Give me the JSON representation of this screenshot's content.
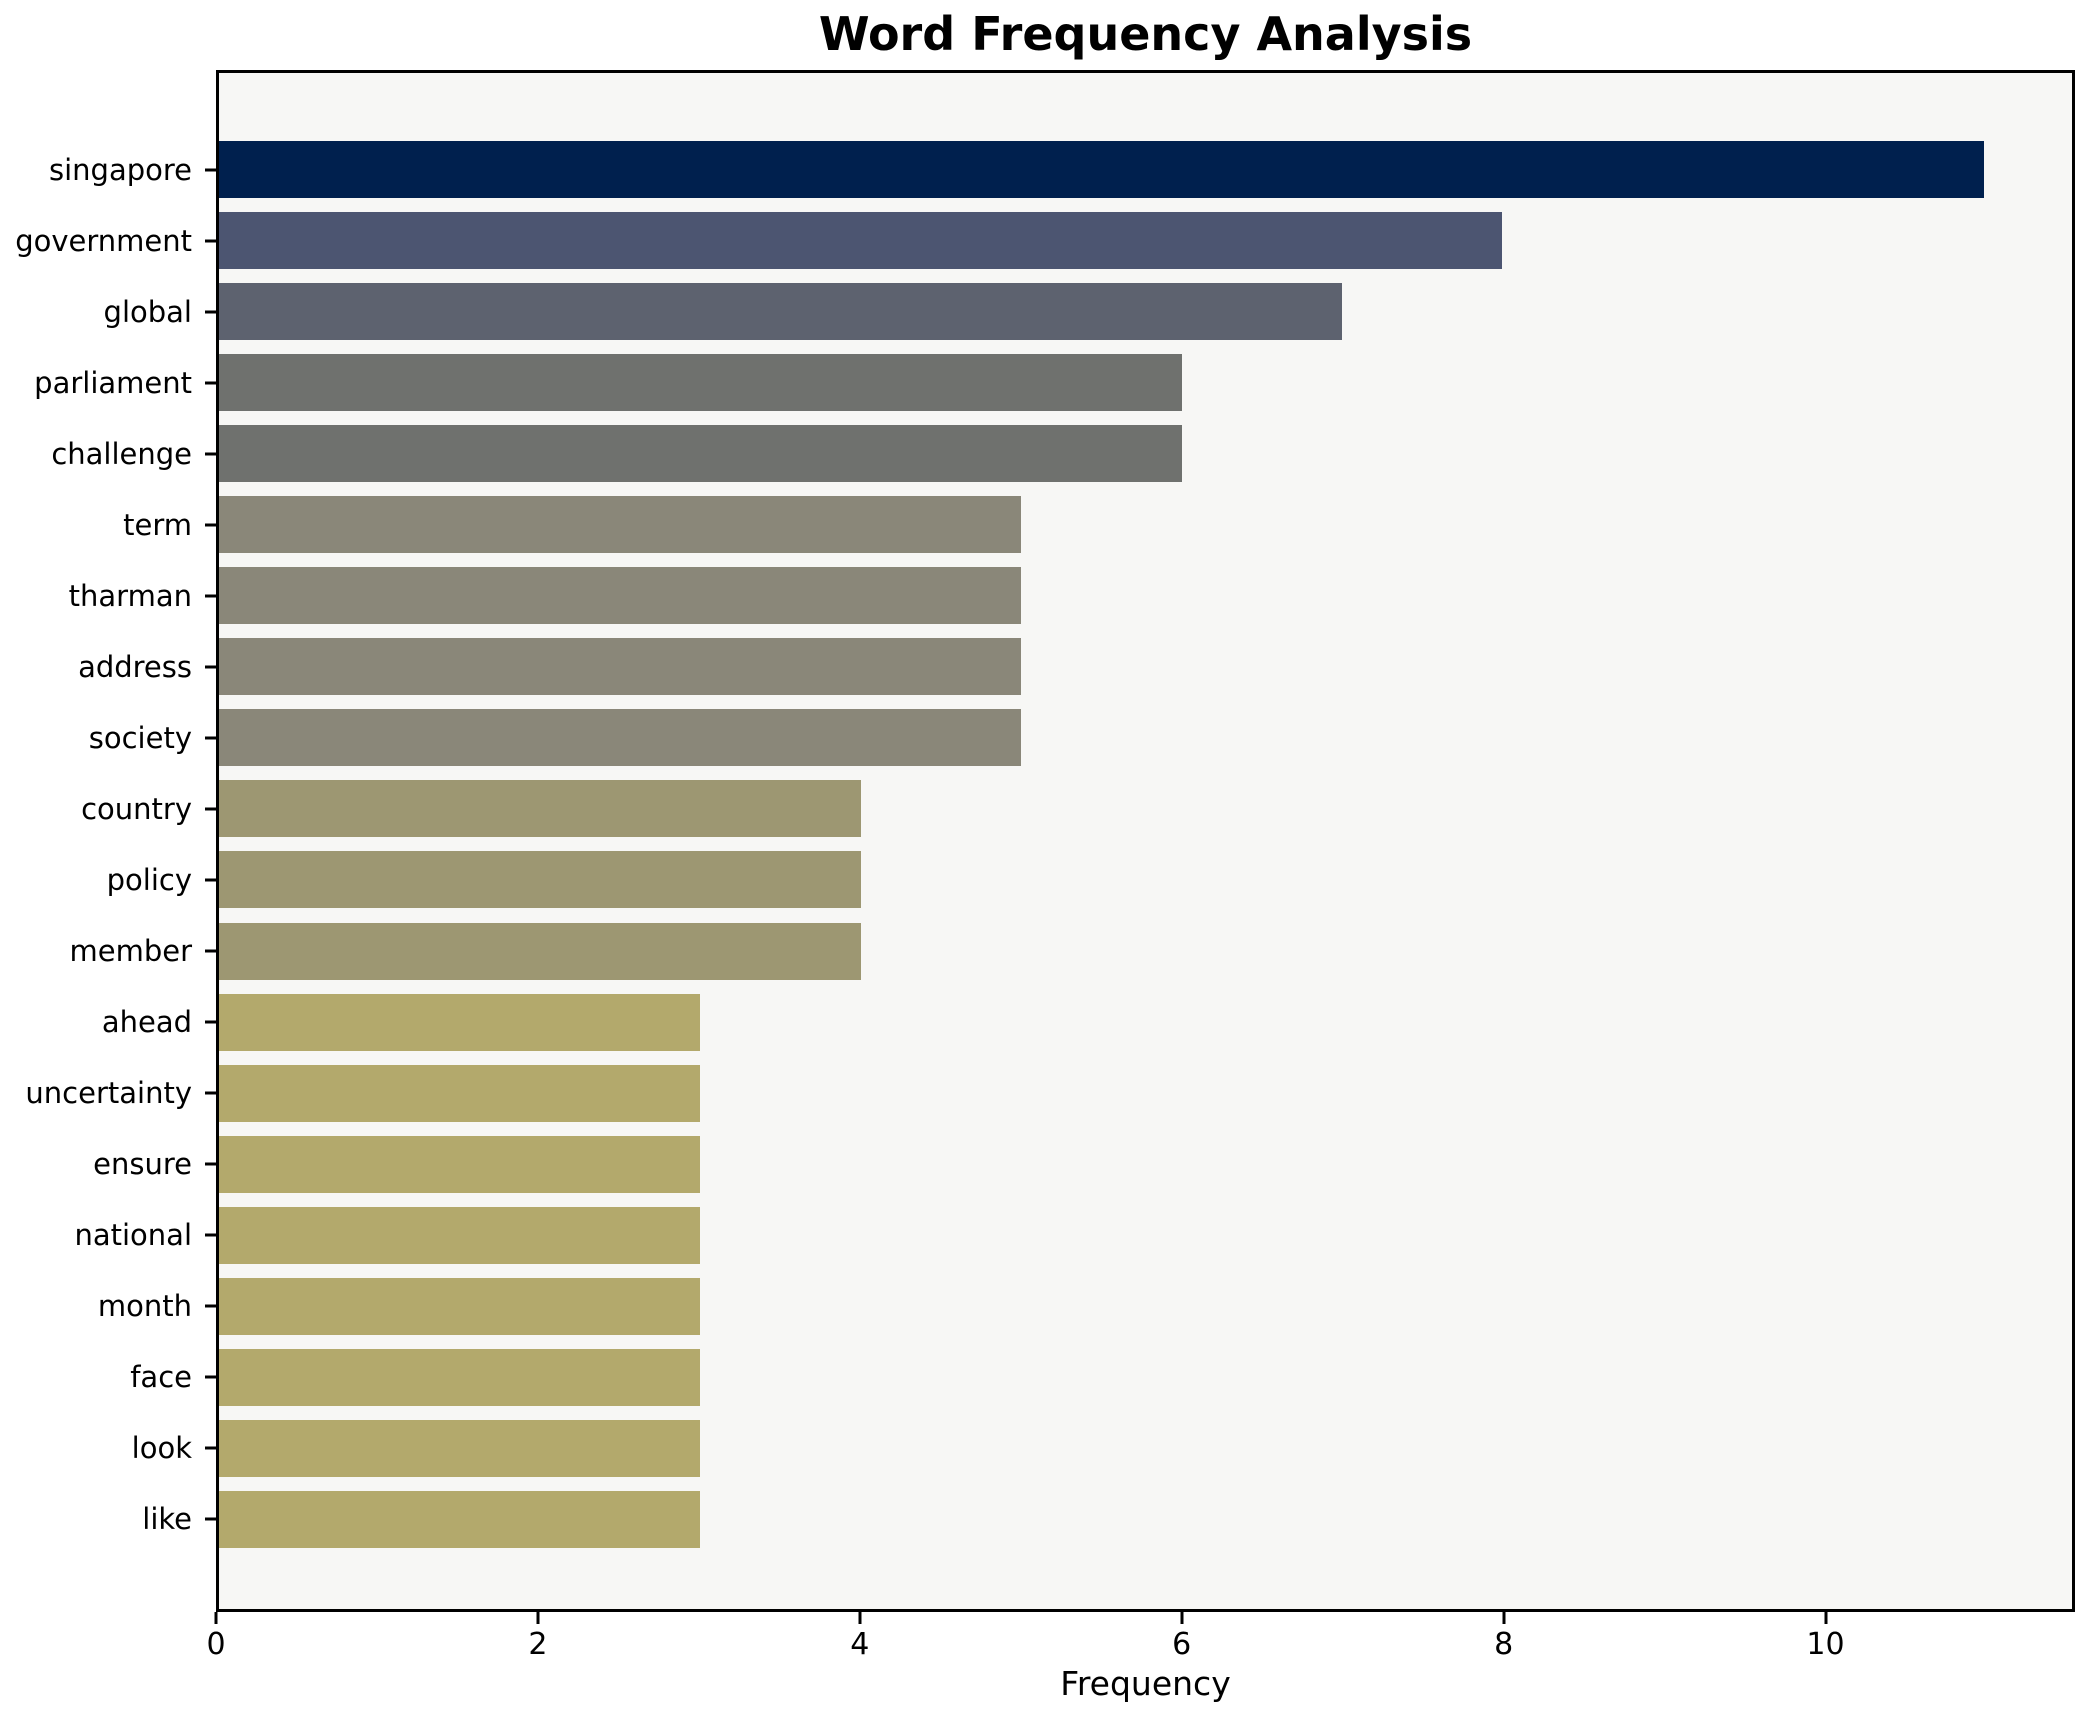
{
  "title": "Word Frequency Analysis",
  "chart_data": {
    "type": "bar",
    "orientation": "horizontal",
    "title": "Word Frequency Analysis",
    "xlabel": "Frequency",
    "ylabel": "",
    "categories": [
      "singapore",
      "government",
      "global",
      "parliament",
      "challenge",
      "term",
      "tharman",
      "address",
      "society",
      "country",
      "policy",
      "member",
      "ahead",
      "uncertainty",
      "ensure",
      "national",
      "month",
      "face",
      "look",
      "like"
    ],
    "values": [
      11,
      8,
      7,
      6,
      6,
      5,
      5,
      5,
      5,
      4,
      4,
      4,
      3,
      3,
      3,
      3,
      3,
      3,
      3,
      3
    ],
    "bar_colors": [
      "#00204e",
      "#4c5571",
      "#5d626f",
      "#6f716e",
      "#6f716e",
      "#8a8779",
      "#8a8779",
      "#8a8779",
      "#8a8779",
      "#9d9772",
      "#9d9772",
      "#9d9772",
      "#b3a96c",
      "#b3a96c",
      "#b3a96c",
      "#b3a96c",
      "#b3a96c",
      "#b3a96c",
      "#b3a96c",
      "#b3a96c"
    ],
    "xlim": [
      0,
      11.55
    ],
    "xticks": [
      0,
      2,
      4,
      6,
      8,
      10
    ],
    "grid": false,
    "legend": null,
    "bar_height_ratio": 0.8
  },
  "style": {
    "plot_background": "#f7f7f5",
    "figure_background": "#ffffff",
    "spine_color": "#000000",
    "text_color": "#000000"
  }
}
